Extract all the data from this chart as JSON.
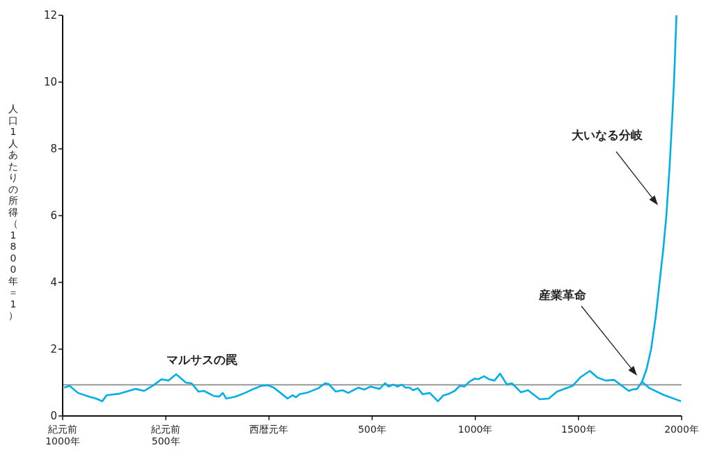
{
  "chart_data": {
    "type": "line",
    "ylabel": "人口1人あたりの所得（1800年＝1）",
    "xlim": [
      -1000,
      2000
    ],
    "ylim": [
      0,
      12
    ],
    "xticks": [
      {
        "value": -1000,
        "label": "紀元前\n1000年"
      },
      {
        "value": -500,
        "label": "紀元前\n500年"
      },
      {
        "value": 0,
        "label": "西暦元年"
      },
      {
        "value": 500,
        "label": "500年"
      },
      {
        "value": 1000,
        "label": "1000年"
      },
      {
        "value": 1500,
        "label": "1500年"
      },
      {
        "value": 2000,
        "label": "2000年"
      }
    ],
    "yticks": [
      0,
      2,
      4,
      6,
      8,
      10,
      12
    ],
    "grid": false,
    "legend": false,
    "marker": "none",
    "line_style": "solid",
    "series": [
      {
        "color": "#00aee8",
        "x": [
          -993,
          -966,
          -926,
          -872,
          -838,
          -808,
          -787,
          -723,
          -646,
          -605,
          -555,
          -521,
          -487,
          -450,
          -403,
          -376,
          -342,
          -315,
          -268,
          -241,
          -224,
          -207,
          -163,
          -116,
          -82,
          -38,
          -4,
          23,
          56,
          90,
          114,
          131,
          148,
          191,
          239,
          272,
          289,
          323,
          357,
          384,
          434,
          461,
          492,
          536,
          563,
          580,
          603,
          623,
          644,
          661,
          681,
          698,
          721,
          745,
          779,
          819,
          846,
          866,
          900,
          924,
          947,
          974,
          998,
          1015,
          1042,
          1066,
          1093,
          1120,
          1153,
          1177,
          1221,
          1255,
          1312,
          1356,
          1396,
          1471,
          1508,
          1555,
          1592,
          1632,
          1673,
          1707,
          1744,
          1761,
          1784,
          1808,
          1830,
          1852,
          1875,
          1893,
          1911,
          1926,
          1942,
          1955,
          1963,
          1975
        ],
        "values": [
          0.85,
          0.9,
          0.69,
          0.58,
          0.52,
          0.44,
          0.62,
          0.67,
          0.81,
          0.75,
          0.94,
          1.1,
          1.06,
          1.25,
          1.0,
          0.98,
          0.73,
          0.75,
          0.6,
          0.58,
          0.69,
          0.52,
          0.58,
          0.69,
          0.79,
          0.9,
          0.92,
          0.85,
          0.69,
          0.52,
          0.62,
          0.56,
          0.65,
          0.71,
          0.83,
          0.98,
          0.96,
          0.73,
          0.77,
          0.69,
          0.85,
          0.79,
          0.88,
          0.81,
          0.98,
          0.88,
          0.94,
          0.88,
          0.94,
          0.85,
          0.85,
          0.77,
          0.83,
          0.65,
          0.69,
          0.44,
          0.62,
          0.65,
          0.75,
          0.9,
          0.88,
          1.04,
          1.12,
          1.1,
          1.19,
          1.1,
          1.06,
          1.27,
          0.94,
          0.98,
          0.71,
          0.77,
          0.5,
          0.52,
          0.73,
          0.9,
          1.15,
          1.35,
          1.15,
          1.06,
          1.08,
          0.92,
          0.75,
          0.79,
          0.81,
          1.02,
          1.4,
          2.0,
          3.0,
          4.0,
          5.0,
          6.0,
          7.5,
          9.0,
          10.0,
          12.0
        ]
      },
      {
        "color": "#00aee8",
        "x": [
          1808,
          1845,
          1913,
          1997
        ],
        "values": [
          1.02,
          0.83,
          0.63,
          0.44
        ]
      }
    ],
    "ref_lines": [
      {
        "axis": "y",
        "value": 0.93,
        "color": "#999999"
      }
    ],
    "annotations": [
      "マルサスの罠",
      "産業革命",
      "大いなる分岐"
    ]
  }
}
